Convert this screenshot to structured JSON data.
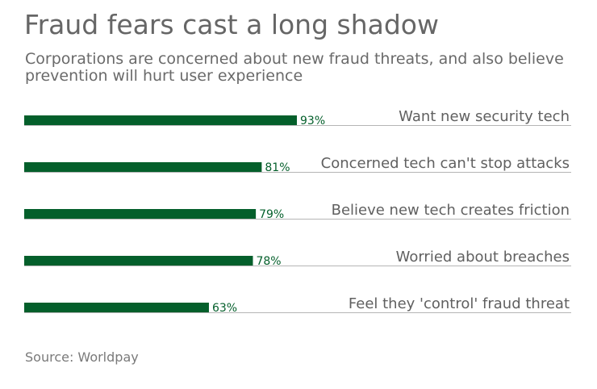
{
  "colors": {
    "bar": "#045f2b",
    "value_label": "#045f2b",
    "category_label": "#606060",
    "baseline": "#b5b5b5",
    "title": "#666666"
  },
  "chart_data": {
    "type": "bar",
    "orientation": "horizontal",
    "title": "Fraud fears cast a long shadow",
    "subtitle": "Corporations are concerned about new fraud threats, and also believe prevention will hurt user experience",
    "categories": [
      "Want new security tech",
      "Concerned tech can't stop attacks",
      "Believe new tech creates friction",
      "Worried about breaches",
      "Feel they 'control' fraud threat"
    ],
    "values": [
      93,
      81,
      79,
      78,
      63
    ],
    "value_labels": [
      "93%",
      "81%",
      "79%",
      "78%",
      "63%"
    ],
    "unit": "%",
    "xlim": [
      0,
      100
    ],
    "grid": false,
    "legend": "none",
    "xlabel": "",
    "ylabel": ""
  },
  "source": "Source: Worldpay"
}
